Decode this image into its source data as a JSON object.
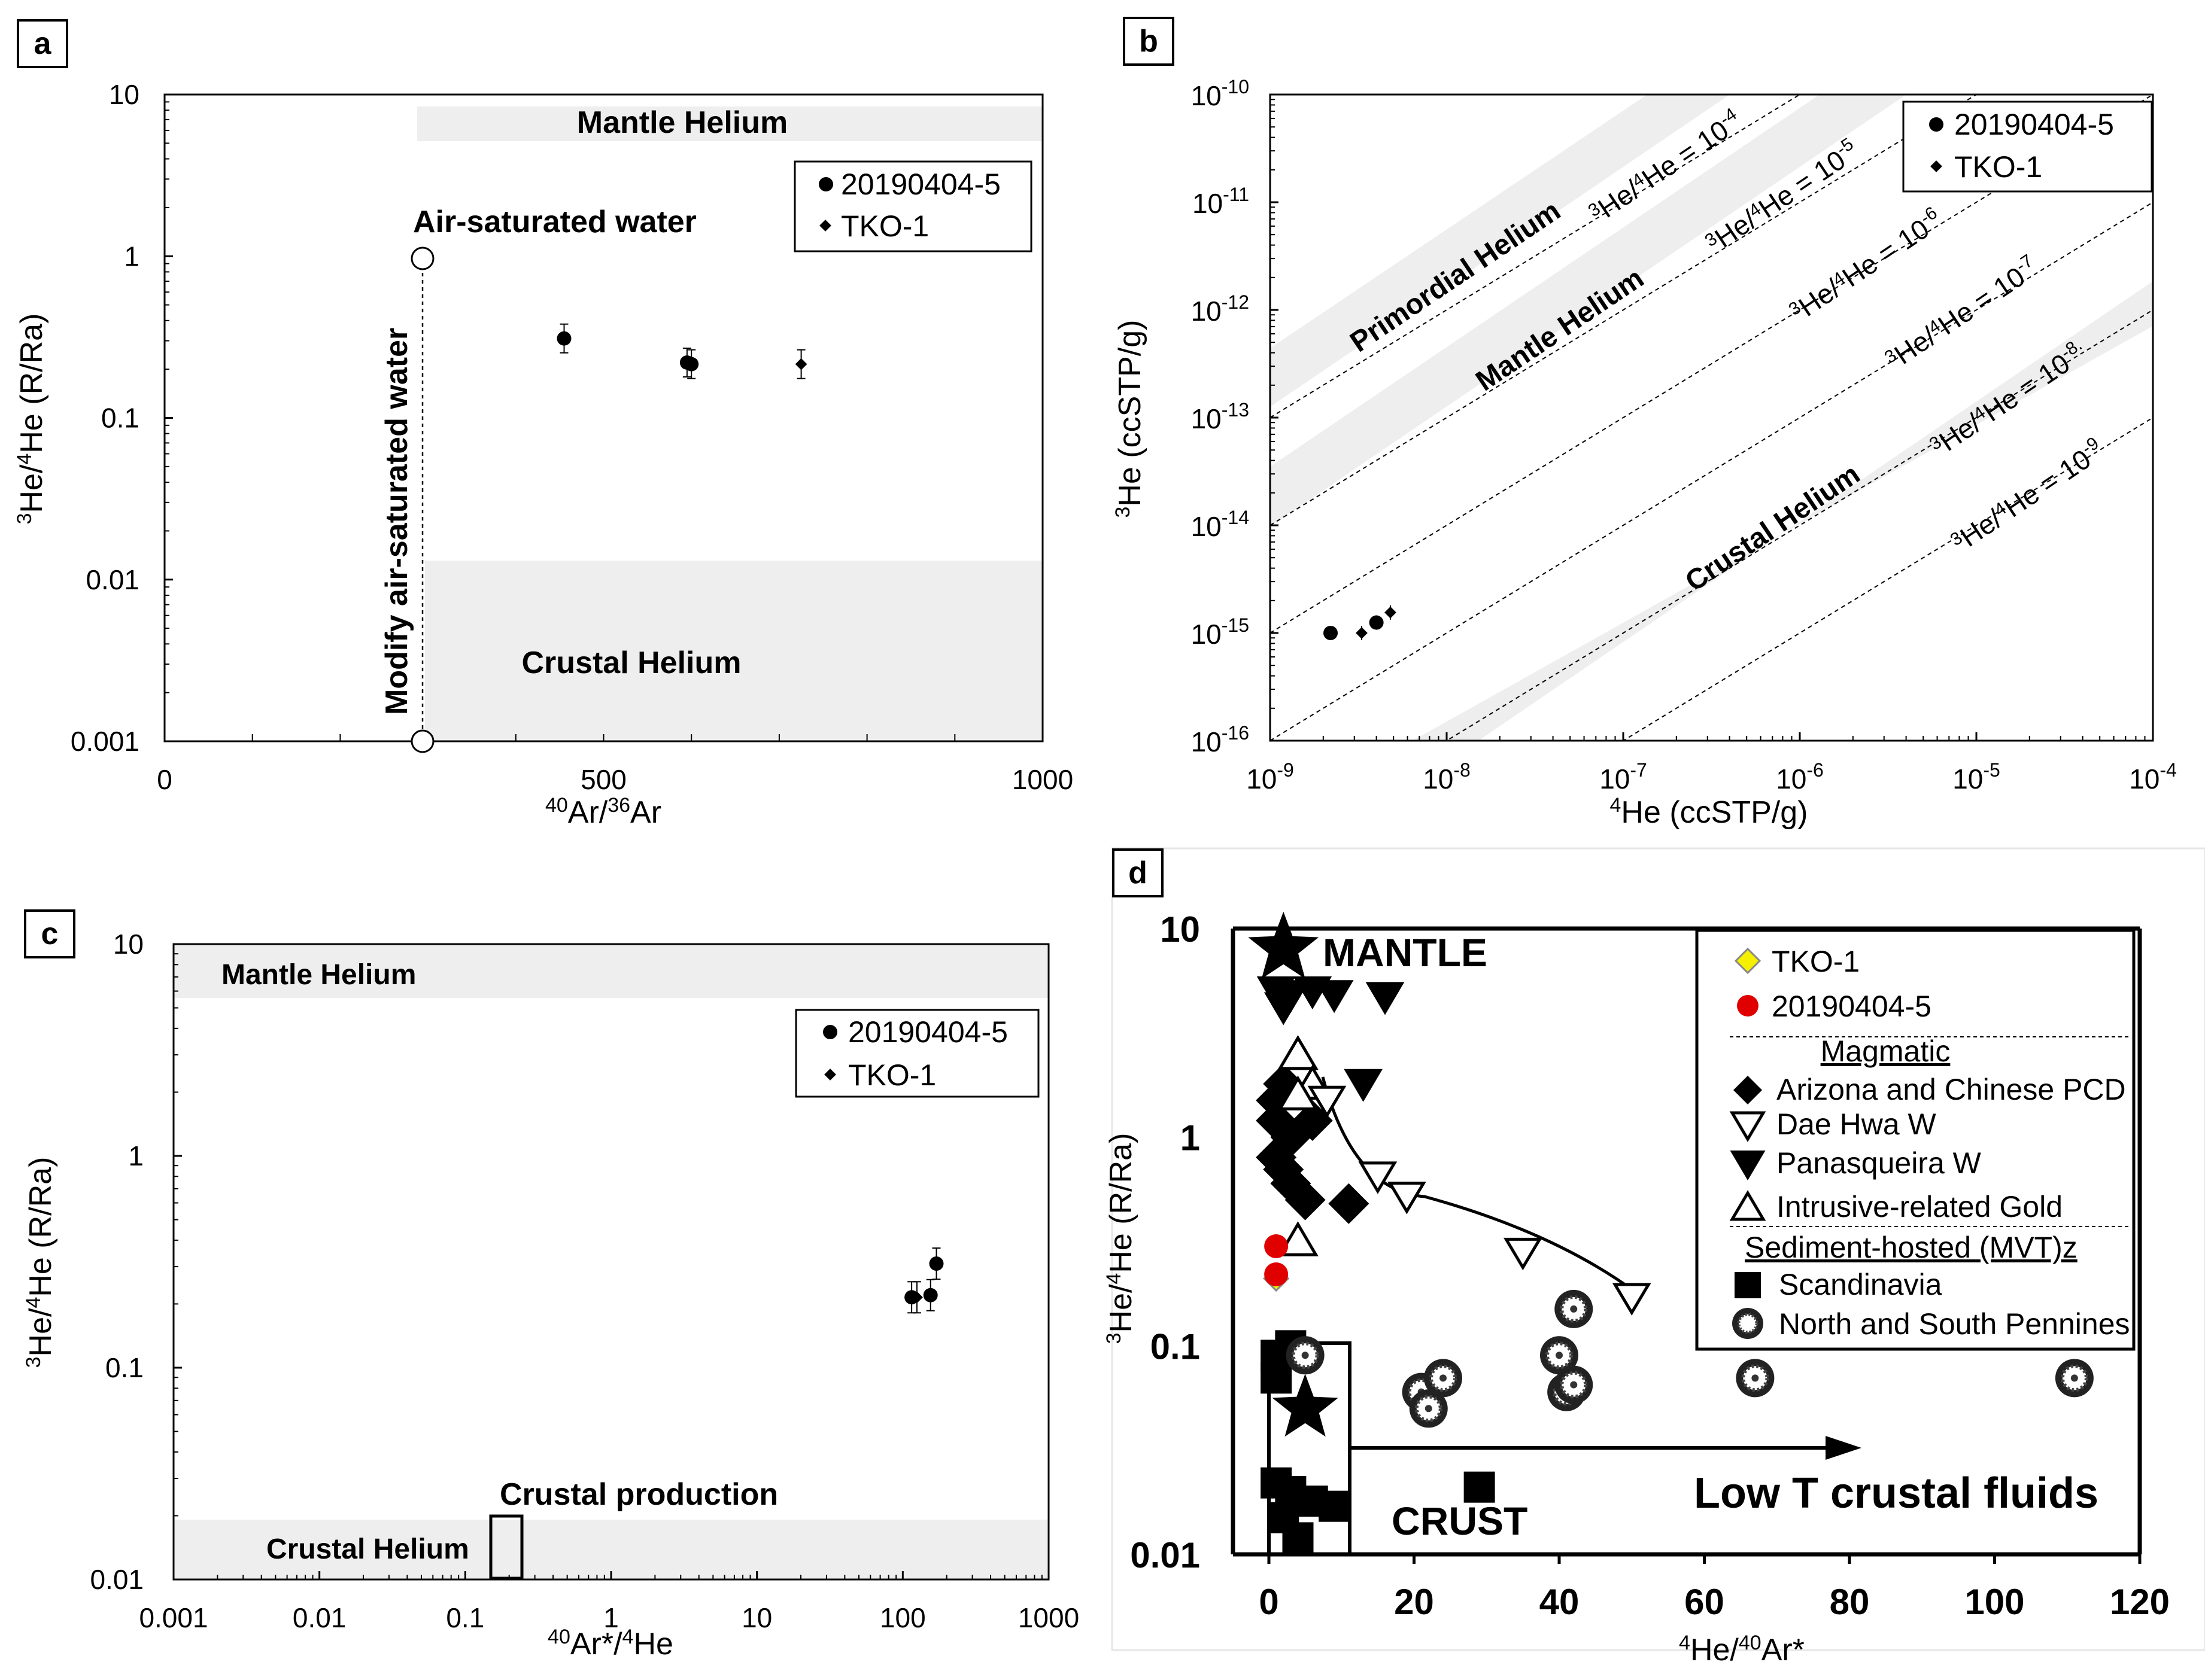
{
  "chart_data": [
    {
      "panel": "a",
      "type": "scatter",
      "xlabel": "40Ar/36Ar",
      "ylabel": "3He/4He (R/Ra)",
      "xlim": [
        0,
        1000
      ],
      "ylim": [
        0.001,
        10
      ],
      "yscale": "log",
      "x_ticks": [
        "0",
        "500",
        "1000"
      ],
      "y_ticks": [
        "0.001",
        "0.01",
        "0.1",
        "1",
        "10"
      ],
      "bands": [
        {
          "label": "Mantle Helium",
          "x": [
            290,
            1000
          ],
          "y": [
            5.5,
            8.5
          ]
        },
        {
          "label": "Crustal Helium",
          "x": [
            295,
            1000
          ],
          "y": [
            0.001,
            0.013
          ]
        }
      ],
      "annotations": [
        "Air-saturated water",
        "Modify air-saturated water"
      ],
      "asw_points": [
        [
          295,
          1.0
        ],
        [
          295,
          0.001
        ]
      ],
      "legend": [
        "20190404-5",
        "TKO-1"
      ],
      "series": [
        {
          "name": "20190404-5",
          "marker": "circle",
          "points": [
            [
              455,
              0.31
            ],
            [
              595,
              0.22
            ],
            [
              600,
              0.215
            ]
          ]
        },
        {
          "name": "TKO-1",
          "marker": "diamond",
          "points": [
            [
              725,
              0.215
            ]
          ]
        }
      ]
    },
    {
      "panel": "b",
      "type": "scatter",
      "xlabel": "4He (ccSTP/g)",
      "ylabel": "3He (ccSTP/g)",
      "xscale": "log",
      "yscale": "log",
      "x_ticks": [
        "10-9",
        "10-8",
        "10-7",
        "10-6",
        "10-5",
        "10-4"
      ],
      "y_ticks": [
        "10-16",
        "10-15",
        "10-14",
        "10-13",
        "10-12",
        "10-11",
        "10-10"
      ],
      "ratio_lines": [
        "3He/4He = 10-4",
        "3He/4He = 10-5",
        "3He/4He = 10-6",
        "3He/4He = 10-7",
        "3He/4He = 10-8",
        "3He/4He = 10-9"
      ],
      "bands": [
        "Primordial Helium",
        "Mantle Helium",
        "Crustal Helium"
      ],
      "legend": [
        "20190404-5",
        "TKO-1"
      ],
      "series": [
        {
          "name": "20190404-5",
          "marker": "circle",
          "points": [
            [
              2.2e-09,
              1e-15
            ],
            [
              4e-09,
              1.25e-15
            ]
          ]
        },
        {
          "name": "TKO-1",
          "marker": "diamond",
          "points": [
            [
              3.3e-09,
              1e-15
            ],
            [
              4.8e-09,
              1.55e-15
            ]
          ]
        }
      ]
    },
    {
      "panel": "c",
      "type": "scatter",
      "xlabel": "40Ar*/4He",
      "ylabel": "3He/4He (R/Ra)",
      "xscale": "log",
      "yscale": "log",
      "x_ticks": [
        "0.001",
        "0.01",
        "0.1",
        "1",
        "10",
        "100",
        "1000"
      ],
      "y_ticks": [
        "0.01",
        "0.1",
        "1",
        "10"
      ],
      "bands": [
        "Mantle Helium",
        "Crustal Helium"
      ],
      "annotations": [
        "Crustal production"
      ],
      "legend": [
        "20190404-5",
        "TKO-1"
      ],
      "series": [
        {
          "name": "20190404-5",
          "marker": "circle",
          "points": [
            [
              115,
              0.215
            ],
            [
              155,
              0.22
            ],
            [
              170,
              0.31
            ]
          ]
        },
        {
          "name": "TKO-1",
          "marker": "diamond",
          "points": [
            [
              125,
              0.215
            ]
          ]
        }
      ]
    },
    {
      "panel": "d",
      "type": "scatter",
      "xlabel": "4He/40Ar*",
      "ylabel": "3He/4He (R/Ra)",
      "xlim": [
        0,
        120
      ],
      "ylim": [
        0.01,
        10
      ],
      "yscale": "log",
      "x_ticks": [
        "0",
        "20",
        "40",
        "60",
        "80",
        "100",
        "120"
      ],
      "y_ticks": [
        "0.01",
        "0.1",
        "1",
        "10"
      ],
      "annotations": [
        "MANTLE",
        "CRUST",
        "Low T crustal fluids"
      ],
      "legend_items": [
        "TKO-1",
        "20190404-5",
        "Magmatic",
        "Arizona and Chinese PCD",
        "Dae Hwa W",
        "Panasqueira W",
        "Intrusive-related Gold",
        "Sediment-hosted (MVT)z",
        "Scandinavia",
        "North and South Pennines"
      ],
      "series": [
        {
          "name": "TKO-1",
          "marker": "diamond-yellow",
          "points": [
            [
              1,
              0.21
            ]
          ]
        },
        {
          "name": "20190404-5",
          "marker": "circle-red",
          "points": [
            [
              1,
              0.3
            ],
            [
              1,
              0.22
            ]
          ]
        },
        {
          "name": "Dae Hwa W",
          "marker": "tri-down-open",
          "points": [
            [
              8,
              1.5
            ],
            [
              15,
              0.65
            ],
            [
              19,
              0.52
            ],
            [
              35,
              0.28
            ],
            [
              50,
              0.17
            ]
          ]
        },
        {
          "name": "North and South Pennines",
          "marker": "circle-hatch",
          "points": [
            [
              5,
              0.09
            ],
            [
              21,
              0.06
            ],
            [
              22,
              0.05
            ],
            [
              24,
              0.07
            ],
            [
              40,
              0.09
            ],
            [
              41,
              0.06
            ],
            [
              42,
              0.065
            ],
            [
              42,
              0.15
            ],
            [
              67,
              0.07
            ],
            [
              111,
              0.07
            ]
          ]
        }
      ]
    }
  ]
}
